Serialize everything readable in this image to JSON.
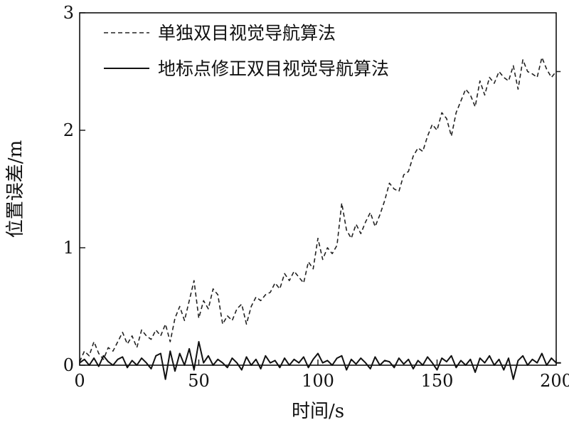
{
  "chart_data": {
    "type": "line",
    "title": "",
    "xlabel": "时间/s",
    "ylabel": "位置误差/m",
    "xlim": [
      0,
      200
    ],
    "ylim": [
      0,
      3
    ],
    "xticks": [
      0,
      50,
      100,
      150,
      200
    ],
    "yticks": [
      0,
      1,
      2,
      3
    ],
    "grid": false,
    "legend_position": "top-left",
    "series": [
      {
        "name": "单独双目视觉导航算法",
        "style": "dashed",
        "color": "#222222",
        "x": [
          0,
          2,
          4,
          6,
          8,
          10,
          12,
          14,
          16,
          18,
          20,
          22,
          24,
          26,
          28,
          30,
          32,
          34,
          36,
          38,
          40,
          42,
          44,
          46,
          48,
          50,
          52,
          54,
          56,
          58,
          60,
          62,
          64,
          66,
          68,
          70,
          72,
          74,
          76,
          78,
          80,
          82,
          84,
          86,
          88,
          90,
          92,
          94,
          96,
          98,
          100,
          102,
          104,
          106,
          108,
          110,
          112,
          114,
          116,
          118,
          120,
          122,
          124,
          126,
          128,
          130,
          132,
          134,
          136,
          138,
          140,
          142,
          144,
          146,
          148,
          150,
          152,
          154,
          156,
          158,
          160,
          162,
          164,
          166,
          168,
          170,
          172,
          174,
          176,
          178,
          180,
          182,
          184,
          186,
          188,
          190,
          192,
          194,
          196,
          198,
          200,
          202
        ],
        "values": [
          0.03,
          0.12,
          0.08,
          0.2,
          0.1,
          0.05,
          0.15,
          0.12,
          0.2,
          0.28,
          0.18,
          0.25,
          0.15,
          0.3,
          0.25,
          0.22,
          0.3,
          0.25,
          0.35,
          0.2,
          0.4,
          0.5,
          0.38,
          0.55,
          0.72,
          0.4,
          0.55,
          0.48,
          0.65,
          0.6,
          0.35,
          0.42,
          0.38,
          0.48,
          0.52,
          0.35,
          0.5,
          0.58,
          0.55,
          0.6,
          0.62,
          0.7,
          0.65,
          0.78,
          0.72,
          0.8,
          0.75,
          0.7,
          0.88,
          0.82,
          1.08,
          0.9,
          1.0,
          0.95,
          1.02,
          1.38,
          1.15,
          1.08,
          1.2,
          1.12,
          1.22,
          1.3,
          1.18,
          1.28,
          1.4,
          1.55,
          1.5,
          1.48,
          1.62,
          1.65,
          1.78,
          1.85,
          1.82,
          1.95,
          2.05,
          2.0,
          2.15,
          2.1,
          1.95,
          2.15,
          2.25,
          2.35,
          2.3,
          2.2,
          2.42,
          2.3,
          2.45,
          2.4,
          2.5,
          2.45,
          2.42,
          2.55,
          2.35,
          2.6,
          2.5,
          2.48,
          2.45,
          2.62,
          2.52,
          2.45,
          2.5,
          2.5
        ]
      },
      {
        "name": "地标点修正双目视觉导航算法",
        "style": "solid",
        "color": "#111111",
        "x": [
          0,
          2,
          4,
          6,
          8,
          10,
          12,
          14,
          16,
          18,
          20,
          22,
          24,
          26,
          28,
          30,
          32,
          34,
          36,
          38,
          40,
          42,
          44,
          46,
          48,
          50,
          52,
          54,
          56,
          58,
          60,
          62,
          64,
          66,
          68,
          70,
          72,
          74,
          76,
          78,
          80,
          82,
          84,
          86,
          88,
          90,
          92,
          94,
          96,
          98,
          100,
          102,
          104,
          106,
          108,
          110,
          112,
          114,
          116,
          118,
          120,
          122,
          124,
          126,
          128,
          130,
          132,
          134,
          136,
          138,
          140,
          142,
          144,
          146,
          148,
          150,
          152,
          154,
          156,
          158,
          160,
          162,
          164,
          166,
          168,
          170,
          172,
          174,
          176,
          178,
          180,
          182,
          184,
          186,
          188,
          190,
          192,
          194,
          196,
          198,
          200,
          202
        ],
        "values": [
          0.02,
          0.05,
          0.0,
          0.06,
          -0.01,
          0.08,
          0.03,
          0.0,
          0.05,
          0.07,
          -0.02,
          0.04,
          0.0,
          0.06,
          0.02,
          -0.03,
          0.08,
          0.1,
          -0.12,
          0.12,
          -0.05,
          0.1,
          0.0,
          0.14,
          -0.04,
          0.2,
          0.02,
          0.08,
          0.0,
          0.05,
          0.02,
          -0.02,
          0.06,
          0.02,
          -0.04,
          0.07,
          0.0,
          0.05,
          -0.03,
          0.08,
          0.02,
          0.04,
          -0.02,
          0.06,
          0.0,
          0.05,
          0.02,
          0.07,
          -0.02,
          0.05,
          0.1,
          0.02,
          0.04,
          0.0,
          0.06,
          0.08,
          -0.04,
          0.05,
          0.01,
          0.06,
          0.02,
          -0.03,
          0.07,
          0.0,
          0.04,
          0.03,
          -0.02,
          0.06,
          0.01,
          0.05,
          -0.03,
          0.04,
          0.0,
          0.07,
          0.02,
          -0.04,
          0.06,
          0.03,
          0.08,
          -0.02,
          0.04,
          0.0,
          0.05,
          -0.06,
          0.06,
          0.02,
          0.08,
          0.0,
          0.05,
          -0.04,
          0.06,
          -0.12,
          0.04,
          0.08,
          0.0,
          0.05,
          0.02,
          0.1,
          0.0,
          0.06,
          0.02,
          0.02
        ]
      }
    ]
  }
}
